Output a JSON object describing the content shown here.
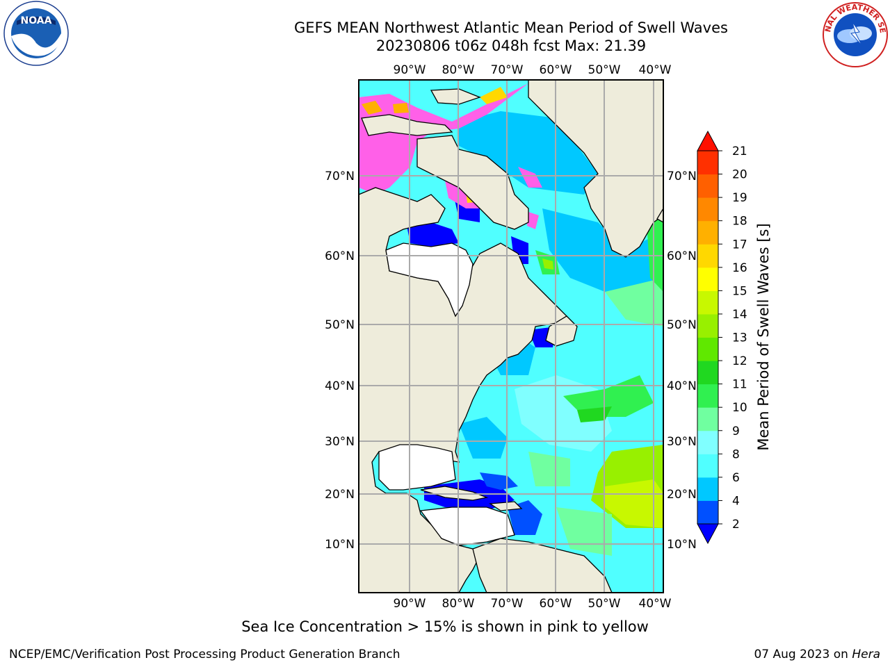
{
  "title": {
    "line1": "GEFS MEAN Northwest Atlantic Mean Period of Swell Waves",
    "line2": "20230806 t06z 048h fcst   Max: 21.39"
  },
  "logos": {
    "left": {
      "icon": "noaa-logo",
      "text": "NOAA"
    },
    "right": {
      "icon": "national-weather-service-logo",
      "text": "NATIONAL WEATHER SERVICE"
    }
  },
  "map": {
    "lon_labels": [
      "90°W",
      "80°W",
      "70°W",
      "60°W",
      "50°W",
      "40°W"
    ],
    "lat_labels": [
      "70°N",
      "60°N",
      "50°N",
      "40°N",
      "30°N",
      "20°N",
      "10°N"
    ],
    "colors": {
      "land": "#eeecdb",
      "ice_free_water": "#ffffff",
      "grid": "#aaaaaa",
      "coast": "#000000"
    }
  },
  "colorbar": {
    "title": "Mean Period of Swell Waves [s]",
    "levels": [
      2,
      4,
      6,
      8,
      9,
      10,
      11,
      12,
      13,
      14,
      15,
      16,
      17,
      18,
      19,
      20,
      21
    ],
    "colors": [
      "#0050ff",
      "#00c8ff",
      "#50ffff",
      "#80ffff",
      "#70ffa0",
      "#30f050",
      "#20d820",
      "#60e800",
      "#98f000",
      "#c8f800",
      "#ffff00",
      "#ffd800",
      "#ffb000",
      "#ff8800",
      "#ff6000",
      "#ff3000"
    ],
    "under_color": "#0000ff",
    "over_color": "#ff1000",
    "tick_labels": [
      "21",
      "20",
      "19",
      "18",
      "17",
      "16",
      "15",
      "14",
      "13",
      "12",
      "11",
      "10",
      "9",
      "8",
      "6",
      "4",
      "2"
    ]
  },
  "note": "Sea Ice Concentration > 15% is shown in pink to yellow",
  "footer": {
    "left": "NCEP/EMC/Verification Post Processing Product Generation Branch",
    "date": "07 Aug 2023 on ",
    "machine": "Hera"
  }
}
